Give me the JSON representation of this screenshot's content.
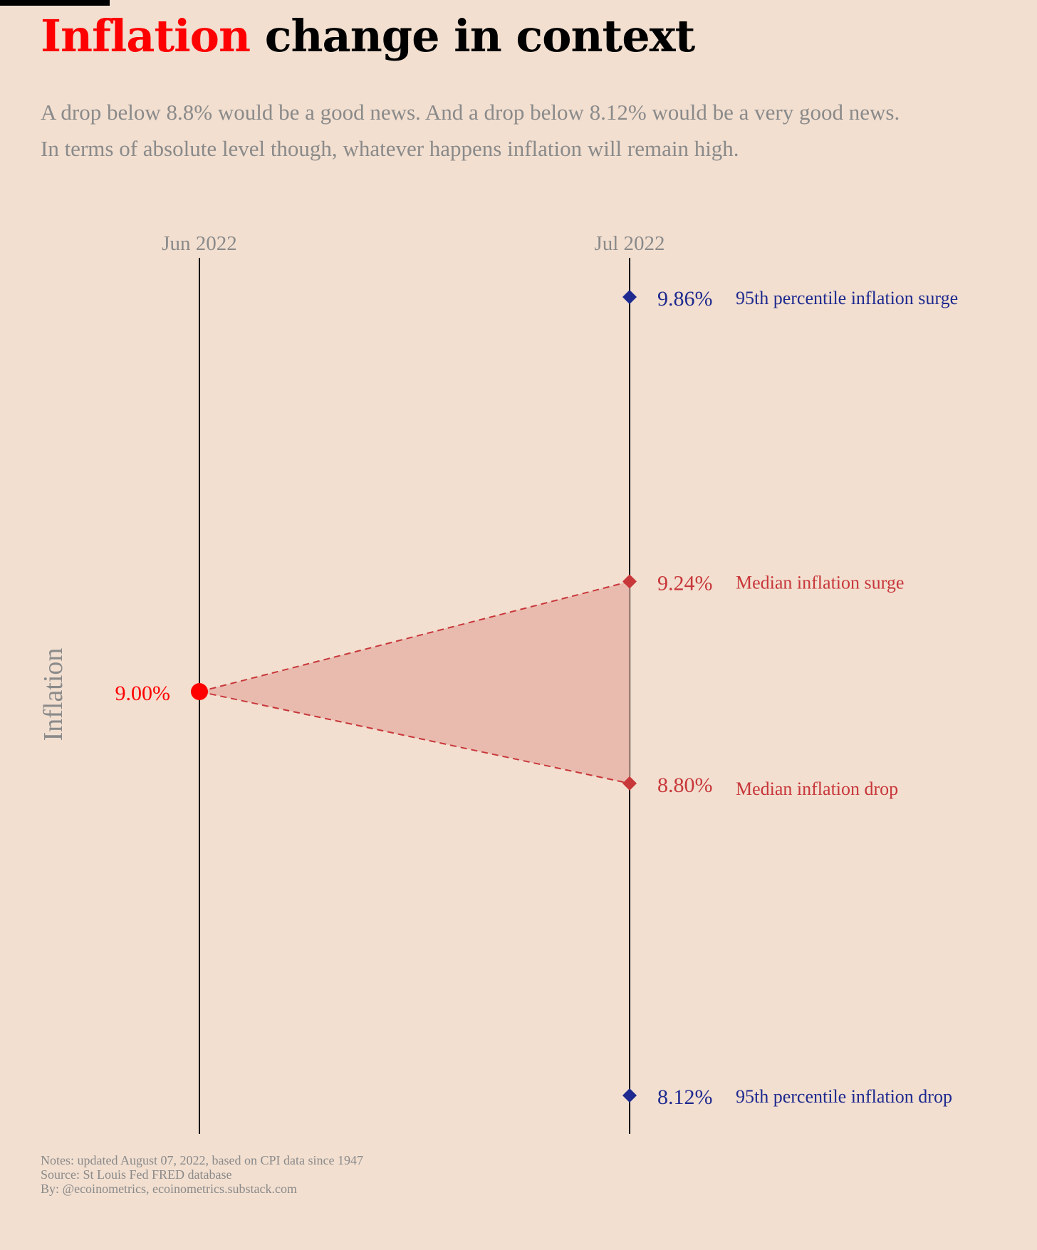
{
  "title": {
    "accent": "Inflation",
    "rest": "change in context"
  },
  "subtitle": {
    "line1": "A drop below 8.8% would be a good news. And a drop below 8.12% would be a very good news.",
    "line2": "In terms of absolute level though, whatever happens inflation will remain high."
  },
  "colors": {
    "accent": "#ff0000",
    "median": "#c8373a",
    "percentile": "#1e2a8f",
    "band": "#e9bbaf",
    "background": "#f2dfd0",
    "muted": "#8a8a8a"
  },
  "chart_data": {
    "type": "line",
    "title": "Inflation change in context",
    "ylabel": "Inflation",
    "x": [
      "Jun 2022",
      "Jul 2022"
    ],
    "ylim": [
      8.07,
      9.9
    ],
    "grid": false,
    "current": {
      "x": "Jun 2022",
      "value": 9.0,
      "label": "9.00%"
    },
    "scenarios": [
      {
        "x": "Jul 2022",
        "value": 9.86,
        "label": "9.86%",
        "name": "95th percentile inflation surge",
        "kind": "percentile"
      },
      {
        "x": "Jul 2022",
        "value": 9.24,
        "label": "9.24%",
        "name": "Median inflation surge",
        "kind": "median"
      },
      {
        "x": "Jul 2022",
        "value": 8.8,
        "label": "8.80%",
        "name": "Median inflation drop",
        "kind": "median"
      },
      {
        "x": "Jul 2022",
        "value": 8.12,
        "label": "8.12%",
        "name": "95th percentile inflation drop",
        "kind": "percentile"
      }
    ]
  },
  "notes": {
    "line1": "Notes: updated August 07, 2022, based on CPI data since 1947",
    "line2": "Source: St Louis Fed FRED database",
    "line3": "By: @ecoinometrics, ecoinometrics.substack.com"
  }
}
